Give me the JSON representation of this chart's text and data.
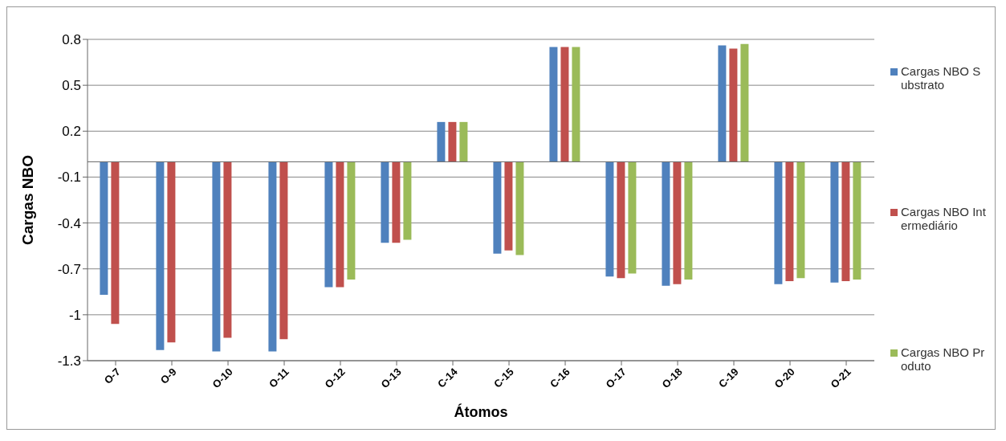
{
  "chart_data": {
    "type": "bar",
    "xlabel": "Átomos",
    "ylabel": "Cargas NBO",
    "categories": [
      "O-7",
      "O-9",
      "O-10",
      "O-11",
      "O-12",
      "O-13",
      "C-14",
      "C-15",
      "C-16",
      "O-17",
      "O-18",
      "C-19",
      "O-20",
      "O-21"
    ],
    "series": [
      {
        "name": "Cargas NBO Substrato",
        "color": "#4f81bd",
        "values": [
          -0.87,
          -1.23,
          -1.24,
          -1.24,
          -0.82,
          -0.53,
          0.26,
          -0.6,
          0.75,
          -0.75,
          -0.81,
          0.76,
          -0.8,
          -0.79
        ]
      },
      {
        "name": "Cargas NBO Intermediário",
        "color": "#c0504d",
        "values": [
          -1.06,
          -1.18,
          -1.15,
          -1.16,
          -0.82,
          -0.53,
          0.26,
          -0.58,
          0.75,
          -0.76,
          -0.8,
          0.74,
          -0.78,
          -0.78
        ]
      },
      {
        "name": "Cargas NBO Produto",
        "color": "#9bbb59",
        "values": [
          0,
          0,
          0,
          0,
          -0.77,
          -0.51,
          0.26,
          -0.61,
          0.75,
          -0.73,
          -0.77,
          0.77,
          -0.76,
          -0.77
        ]
      }
    ],
    "ylim": [
      -1.3,
      0.8
    ],
    "yticks": [
      -1.3,
      -1,
      -0.7,
      -0.4,
      -0.1,
      0.2,
      0.5,
      0.8
    ],
    "grid": "y",
    "legend": "right"
  }
}
